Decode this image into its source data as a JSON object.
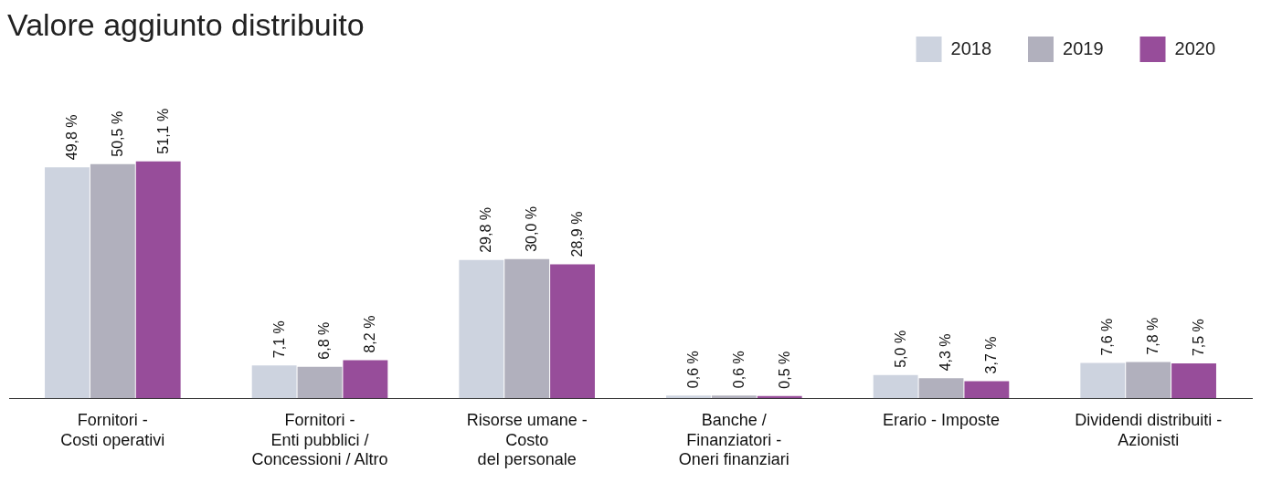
{
  "chart_data": {
    "type": "bar",
    "title": "Valore aggiunto distribuito",
    "categories": [
      "Fornitori -\nCosti operativi",
      "Fornitori -\nEnti pubblici /\nConcessioni / Altro",
      "Risorse umane -\nCosto\ndel personale",
      "Banche /\nFinanziatori -\nOneri finanziari",
      "Erario - Imposte",
      "Dividendi distribuiti -\nAzionisti"
    ],
    "series": [
      {
        "name": "2018",
        "color": "#cdd3df",
        "values": [
          49.8,
          7.1,
          29.8,
          0.6,
          5.0,
          7.6
        ],
        "value_labels": [
          "49,8 %",
          "7,1 %",
          "29,8 %",
          "0,6 %",
          "5,0 %",
          "7,6 %"
        ]
      },
      {
        "name": "2019",
        "color": "#b1b0bd",
        "values": [
          50.5,
          6.8,
          30.0,
          0.6,
          4.3,
          7.8
        ],
        "value_labels": [
          "50,5 %",
          "6,8 %",
          "30,0 %",
          "0,6 %",
          "4,3 %",
          "7,8 %"
        ]
      },
      {
        "name": "2020",
        "color": "#974d9a",
        "values": [
          51.1,
          8.2,
          28.9,
          0.5,
          3.7,
          7.5
        ],
        "value_labels": [
          "51,1 %",
          "8,2 %",
          "28,9 %",
          "0,5 %",
          "3,7 %",
          "7,5 %"
        ]
      }
    ],
    "legend": "top right",
    "grid": false
  }
}
